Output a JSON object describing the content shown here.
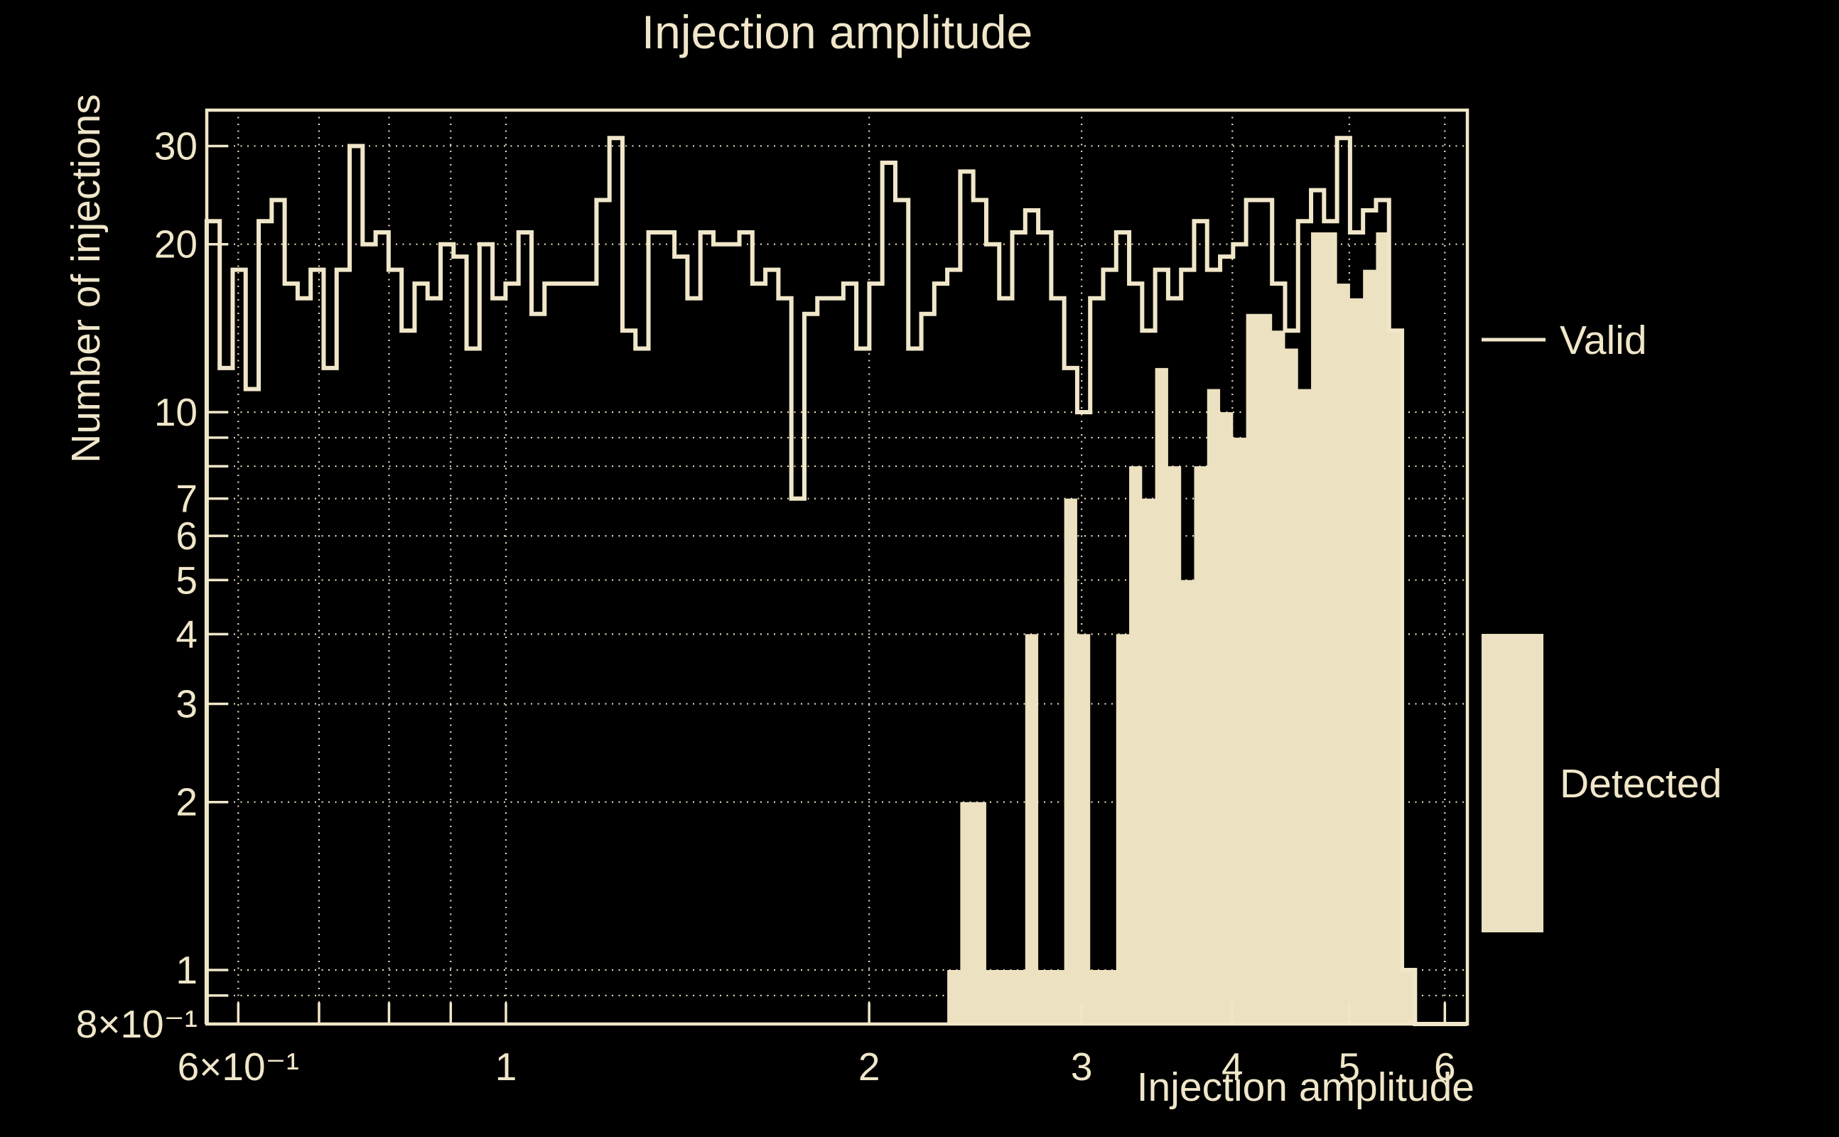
{
  "title": "Injection amplitude",
  "x_axis": {
    "label": "Injection amplitude"
  },
  "y_axis": {
    "label": "Number of injections"
  },
  "legend": {
    "valid": "Valid",
    "detected": "Detected"
  },
  "colors": {
    "background": "#000000",
    "foreground": "#f0e6c9",
    "fill": "#ece1c0"
  },
  "chart_data": {
    "type": "bar",
    "subtype": "log-log step histogram",
    "title": "Injection amplitude",
    "xlabel": "Injection amplitude",
    "ylabel": "Number of injections",
    "x_scale": "log",
    "y_scale": "log",
    "xlim": [
      0.565,
      6.26
    ],
    "ylim": [
      0.8,
      34.8
    ],
    "grid": true,
    "legend_position": "right",
    "bins": {
      "n": 97,
      "start_log10": -0.248,
      "step_log10": 0.010768
    },
    "series": [
      {
        "name": "Valid",
        "style": "step-outline",
        "counts": [
          22,
          12,
          18,
          11,
          22,
          24,
          17,
          16,
          18,
          12,
          18,
          30,
          20,
          21,
          18,
          14,
          17,
          16,
          20,
          19,
          13,
          20,
          16,
          17,
          21,
          15,
          17,
          17,
          17,
          17,
          24,
          31,
          14,
          13,
          21,
          21,
          19,
          16,
          21,
          20,
          20,
          21,
          17,
          18,
          16,
          7,
          15,
          16,
          16,
          17,
          13,
          17,
          28,
          24,
          13,
          15,
          17,
          18,
          27,
          24,
          20,
          16,
          21,
          23,
          21,
          16,
          12,
          10,
          16,
          18,
          21,
          17,
          14,
          18,
          16,
          18,
          22,
          18,
          19,
          20,
          24,
          24,
          17,
          14,
          22,
          25,
          22,
          31,
          21,
          23,
          24,
          14,
          1,
          0,
          0,
          0,
          0
        ]
      },
      {
        "name": "Detected",
        "style": "filled",
        "counts": [
          0,
          0,
          0,
          0,
          0,
          0,
          0,
          0,
          0,
          0,
          0,
          0,
          0,
          0,
          0,
          0,
          0,
          0,
          0,
          0,
          0,
          0,
          0,
          0,
          0,
          0,
          0,
          0,
          0,
          0,
          0,
          0,
          0,
          0,
          0,
          0,
          0,
          0,
          0,
          0,
          0,
          0,
          0,
          0,
          0,
          0,
          0,
          0,
          0,
          0,
          0,
          0,
          0,
          0,
          0,
          0,
          0,
          1,
          2,
          2,
          1,
          1,
          1,
          4,
          1,
          1,
          7,
          4,
          1,
          1,
          4,
          8,
          7,
          12,
          8,
          5,
          8,
          11,
          10,
          9,
          15,
          15,
          14,
          13,
          11,
          21,
          21,
          17,
          16,
          18,
          21,
          14,
          1,
          0,
          0,
          0,
          0
        ]
      }
    ],
    "x_major_ticks": [
      {
        "value": 0.6,
        "label": "6×10⁻¹"
      },
      {
        "value": 1,
        "label": "1"
      },
      {
        "value": 2,
        "label": "2"
      },
      {
        "value": 3,
        "label": "3"
      },
      {
        "value": 4,
        "label": "4"
      },
      {
        "value": 5,
        "label": "5"
      },
      {
        "value": 6,
        "label": "6"
      }
    ],
    "x_minor_ticks": [
      0.7,
      0.8,
      0.9
    ],
    "y_major_ticks": [
      {
        "value": 30,
        "label": "30"
      },
      {
        "value": 20,
        "label": "20"
      },
      {
        "value": 10,
        "label": "10"
      },
      {
        "value": 7,
        "label": "7"
      },
      {
        "value": 6,
        "label": "6"
      },
      {
        "value": 5,
        "label": "5"
      },
      {
        "value": 4,
        "label": "4"
      },
      {
        "value": 3,
        "label": "3"
      },
      {
        "value": 2,
        "label": "2"
      },
      {
        "value": 1,
        "label": "1"
      },
      {
        "value": 0.8,
        "label": "8×10⁻¹"
      }
    ],
    "y_minor_ticks": [
      9,
      8,
      0.9
    ]
  }
}
